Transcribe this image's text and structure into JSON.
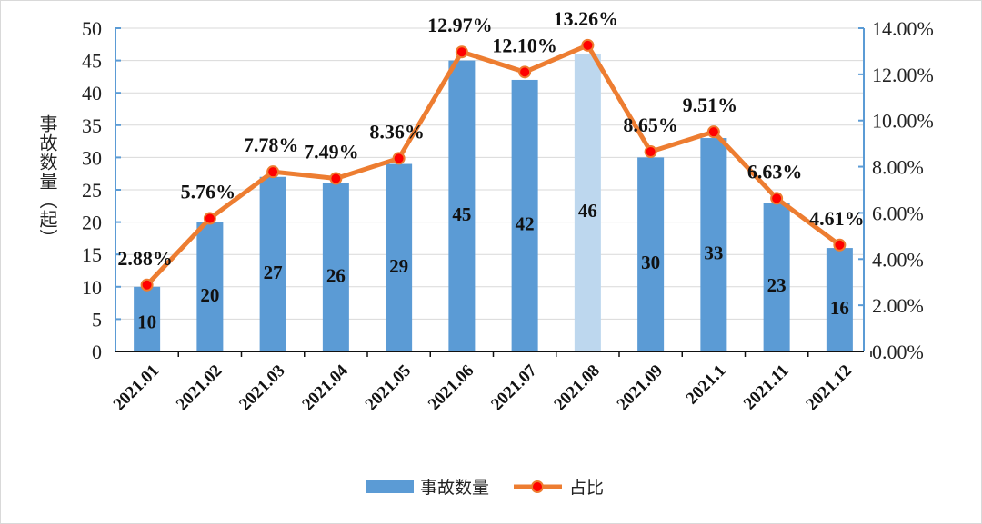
{
  "chart_data": {
    "type": "bar+line",
    "categories": [
      "2021.01",
      "2021.02",
      "2021.03",
      "2021.04",
      "2021.05",
      "2021.06",
      "2021.07",
      "2021.08",
      "2021.09",
      "2021.1",
      "2021.11",
      "2021.12"
    ],
    "series": [
      {
        "name": "事故数量",
        "type": "bar",
        "axis": "left",
        "values": [
          10,
          20,
          27,
          26,
          29,
          45,
          42,
          46,
          30,
          33,
          23,
          16
        ],
        "data_labels": [
          "10",
          "20",
          "27",
          "26",
          "29",
          "45",
          "42",
          "46",
          "30",
          "33",
          "23",
          "16"
        ],
        "color": "#5B9BD5",
        "highlight": {
          "category": "2021.08",
          "color": "#BDD7EE"
        }
      },
      {
        "name": "占比",
        "type": "line",
        "axis": "right",
        "values": [
          2.88,
          5.76,
          7.78,
          7.49,
          8.36,
          12.97,
          12.1,
          13.26,
          8.65,
          9.51,
          6.63,
          4.61
        ],
        "data_labels": [
          "2.88%",
          "5.76%",
          "7.78%",
          "7.49%",
          "8.36%",
          "12.97%",
          "12.10%",
          "13.26%",
          "8.65%",
          "9.51%",
          "6.63%",
          "4.61%"
        ],
        "color": "#ED7D31",
        "marker_color": "#FF0000"
      }
    ],
    "ylabel": "事故数量（起）",
    "ylim": [
      0,
      50
    ],
    "yticks": [
      "0",
      "5",
      "10",
      "15",
      "20",
      "25",
      "30",
      "35",
      "40",
      "45",
      "50"
    ],
    "y2lim": [
      0,
      14
    ],
    "y2ticks": [
      "0.00%",
      "2.00%",
      "4.00%",
      "6.00%",
      "8.00%",
      "10.00%",
      "12.00%",
      "14.00%"
    ],
    "grid": true,
    "legend": "bottom"
  }
}
